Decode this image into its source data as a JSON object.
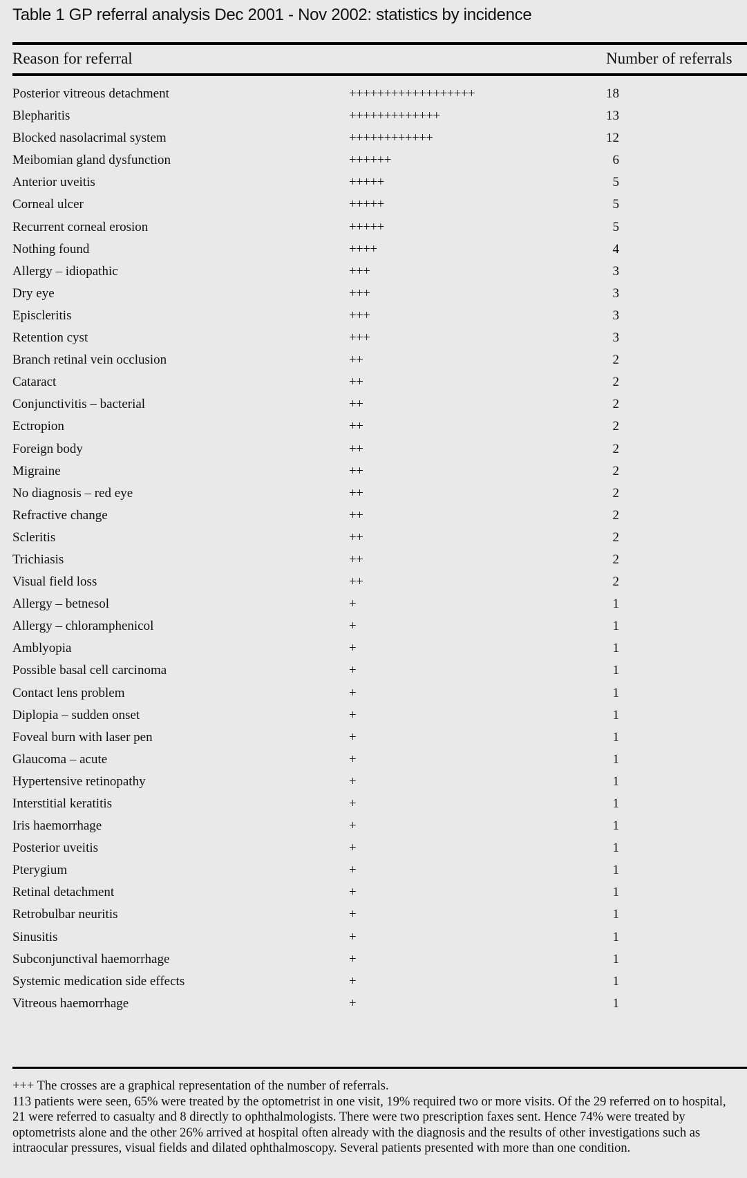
{
  "title": "Table 1  GP referral analysis Dec 2001 - Nov 2002: statistics by incidence",
  "columns": {
    "reason": "Reason for referral",
    "number": "Number of referrals"
  },
  "rows": [
    {
      "reason": "Posterior vitreous detachment",
      "count": 18
    },
    {
      "reason": "Blepharitis",
      "count": 13
    },
    {
      "reason": "Blocked nasolacrimal system",
      "count": 12
    },
    {
      "reason": "Meibomian gland dysfunction",
      "count": 6
    },
    {
      "reason": "Anterior uveitis",
      "count": 5
    },
    {
      "reason": "Corneal ulcer",
      "count": 5
    },
    {
      "reason": "Recurrent corneal erosion",
      "count": 5
    },
    {
      "reason": "Nothing found",
      "count": 4
    },
    {
      "reason": "Allergy – idiopathic",
      "count": 3
    },
    {
      "reason": "Dry eye",
      "count": 3
    },
    {
      "reason": "Episcleritis",
      "count": 3
    },
    {
      "reason": "Retention cyst",
      "count": 3
    },
    {
      "reason": "Branch retinal vein occlusion",
      "count": 2
    },
    {
      "reason": "Cataract",
      "count": 2
    },
    {
      "reason": "Conjunctivitis – bacterial",
      "count": 2
    },
    {
      "reason": "Ectropion",
      "count": 2
    },
    {
      "reason": "Foreign body",
      "count": 2
    },
    {
      "reason": "Migraine",
      "count": 2
    },
    {
      "reason": "No diagnosis – red eye",
      "count": 2
    },
    {
      "reason": "Refractive change",
      "count": 2
    },
    {
      "reason": "Scleritis",
      "count": 2
    },
    {
      "reason": "Trichiasis",
      "count": 2
    },
    {
      "reason": "Visual field loss",
      "count": 2
    },
    {
      "reason": "Allergy – betnesol",
      "count": 1
    },
    {
      "reason": "Allergy – chloramphenicol",
      "count": 1
    },
    {
      "reason": "Amblyopia",
      "count": 1
    },
    {
      "reason": "Possible basal cell carcinoma",
      "count": 1
    },
    {
      "reason": "Contact lens problem",
      "count": 1
    },
    {
      "reason": "Diplopia – sudden onset",
      "count": 1
    },
    {
      "reason": "Foveal burn with laser pen",
      "count": 1
    },
    {
      "reason": "Glaucoma – acute",
      "count": 1
    },
    {
      "reason": "Hypertensive retinopathy",
      "count": 1
    },
    {
      "reason": "Interstitial keratitis",
      "count": 1
    },
    {
      "reason": "Iris haemorrhage",
      "count": 1
    },
    {
      "reason": "Posterior uveitis",
      "count": 1
    },
    {
      "reason": "Pterygium",
      "count": 1
    },
    {
      "reason": "Retinal detachment",
      "count": 1
    },
    {
      "reason": "Retrobulbar neuritis",
      "count": 1
    },
    {
      "reason": "Sinusitis",
      "count": 1
    },
    {
      "reason": "Subconjunctival haemorrhage",
      "count": 1
    },
    {
      "reason": "Systemic medication side effects",
      "count": 1
    },
    {
      "reason": "Vitreous haemorrhage",
      "count": 1
    }
  ],
  "footnotes": {
    "legend": "+++ The crosses are a graphical representation of the number of referrals.",
    "summary": "113 patients were seen, 65% were treated by the optometrist in one visit, 19% required two or more visits. Of the 29 referred on to hospital, 21 were referred to casualty and 8 directly to ophthalmologists. There were two prescription faxes sent. Hence 74% were treated by optometrists alone and the other 26% arrived at hospital often already with the diagnosis and the results of other investigations such as intraocular pressures, visual fields and dilated ophthalmoscopy. Several patients presented with more than one condition."
  }
}
